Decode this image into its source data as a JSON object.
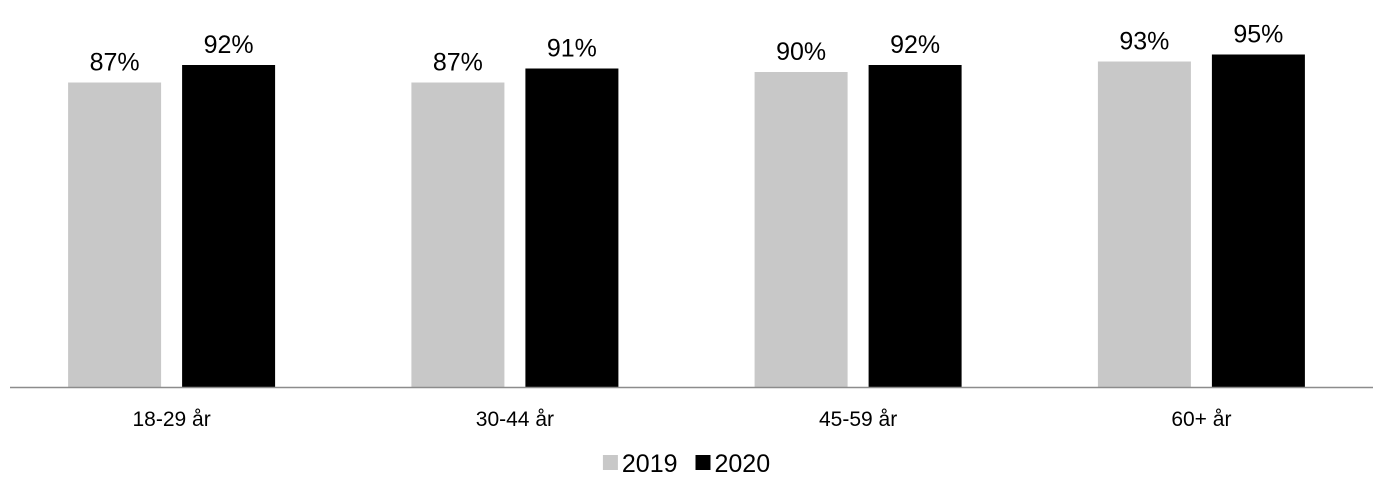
{
  "chart_data": {
    "type": "bar",
    "title": "",
    "xlabel": "",
    "ylabel": "",
    "categories": [
      "18-29 år",
      "30-44 år",
      "45-59 år",
      "60+ år"
    ],
    "series": [
      {
        "name": "2019",
        "values": [
          87,
          87,
          90,
          93
        ],
        "labels": [
          "87%",
          "87%",
          "90%",
          "93%"
        ],
        "color": "#c8c8c8"
      },
      {
        "name": "2020",
        "values": [
          92,
          91,
          92,
          95
        ],
        "labels": [
          "92%",
          "91%",
          "92%",
          "95%"
        ],
        "color": "#000000"
      }
    ],
    "ylim": [
      0,
      100
    ],
    "grid": false,
    "y_axis_visible": false,
    "legend_position": "bottom"
  },
  "colors": {
    "axis": "#8c8c8c",
    "text": "#000000"
  }
}
